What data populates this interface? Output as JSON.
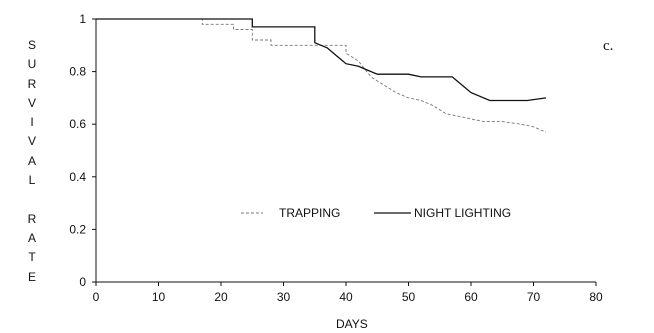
{
  "panel_label": "c.",
  "chart_data": {
    "type": "line",
    "title": "",
    "xlabel": "DAYS",
    "ylabel": "SURVIVAL RATE",
    "xlim": [
      0,
      80
    ],
    "ylim": [
      0,
      1
    ],
    "xticks": [
      "0",
      "10",
      "20",
      "30",
      "40",
      "50",
      "60",
      "70",
      "80"
    ],
    "yticks": [
      "0",
      "0.2",
      "0.4",
      "0.6",
      "0.8",
      "1"
    ],
    "grid": false,
    "legend_position": "center",
    "series": [
      {
        "name": "TRAPPING",
        "style": "dashed",
        "color": "#777777",
        "x": [
          0,
          17,
          17,
          22,
          22,
          25,
          25,
          28,
          28,
          40,
          40,
          42,
          44,
          46,
          48,
          50,
          52,
          54,
          56,
          58,
          60,
          62,
          65,
          68,
          70,
          72
        ],
        "y": [
          1,
          1,
          0.98,
          0.98,
          0.96,
          0.96,
          0.92,
          0.92,
          0.9,
          0.9,
          0.87,
          0.84,
          0.78,
          0.75,
          0.72,
          0.7,
          0.69,
          0.67,
          0.64,
          0.63,
          0.62,
          0.61,
          0.61,
          0.6,
          0.59,
          0.57
        ]
      },
      {
        "name": "NIGHT LIGHTING",
        "style": "solid",
        "color": "#111111",
        "x": [
          0,
          25,
          25,
          35,
          35,
          36,
          37,
          38,
          39,
          40,
          42,
          43,
          45,
          50,
          52,
          57,
          58,
          60,
          63,
          69,
          72
        ],
        "y": [
          1,
          1,
          0.97,
          0.97,
          0.91,
          0.9,
          0.89,
          0.87,
          0.85,
          0.83,
          0.82,
          0.81,
          0.79,
          0.79,
          0.78,
          0.78,
          0.76,
          0.72,
          0.69,
          0.69,
          0.7
        ]
      }
    ]
  }
}
